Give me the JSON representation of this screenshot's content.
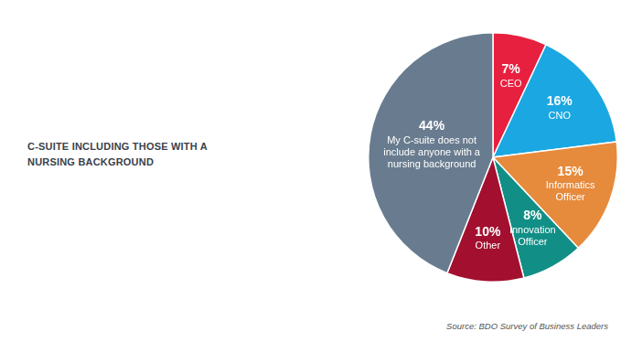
{
  "chart_data": {
    "type": "pie",
    "title": "C-SUITE INCLUDING THOSE WITH A NURSING BACKGROUND",
    "categories": [
      "CEO",
      "CNO",
      "Informatics Officer",
      "Innovation Officer",
      "Other",
      "My C-suite does not include anyone with a nursing background"
    ],
    "values": [
      7,
      16,
      15,
      8,
      10,
      44
    ],
    "value_labels": [
      "7%",
      "16%",
      "15%",
      "8%",
      "10%",
      "44%"
    ],
    "colors": [
      "#e8203f",
      "#1ba7e1",
      "#e68a3c",
      "#118f86",
      "#a3102f",
      "#697c8f"
    ],
    "data_labels": true,
    "source": "Source: BDO Survey of Business Leaders"
  }
}
